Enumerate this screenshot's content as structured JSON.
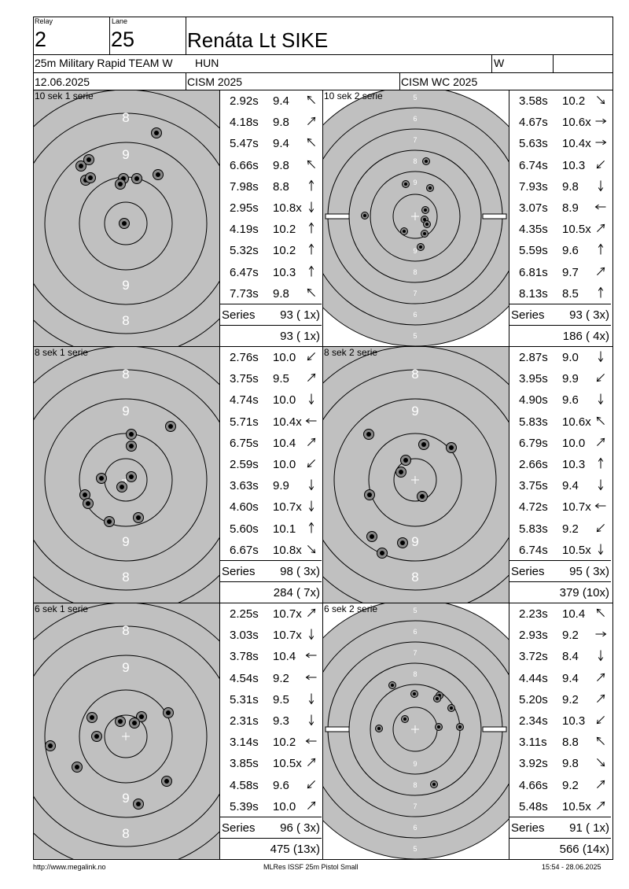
{
  "header": {
    "relay_label": "Relay",
    "relay": "2",
    "lane_label": "Lane",
    "lane": "25",
    "name": "Renáta Lt SIKE",
    "event": "25m Military Rapid TEAM W",
    "nation": "HUN",
    "gender": "W",
    "date": "12.06.2025",
    "competition": "CISM 2025",
    "match": "CISM WC 2025"
  },
  "series": [
    {
      "title": "10 sek 1 serie",
      "target": "precision",
      "shots": [
        {
          "time": "2.92s",
          "score": "9.4",
          "dir": "nw"
        },
        {
          "time": "4.18s",
          "score": "9.8",
          "dir": "ne"
        },
        {
          "time": "5.47s",
          "score": "9.4",
          "dir": "nw"
        },
        {
          "time": "6.66s",
          "score": "9.8",
          "dir": "nw"
        },
        {
          "time": "7.98s",
          "score": "8.8",
          "dir": "n"
        },
        {
          "time": "2.95s",
          "score": "10.8x",
          "dir": "s"
        },
        {
          "time": "4.19s",
          "score": "10.2",
          "dir": "n"
        },
        {
          "time": "5.32s",
          "score": "10.2",
          "dir": "n"
        },
        {
          "time": "6.47s",
          "score": "10.3",
          "dir": "n"
        },
        {
          "time": "7.73s",
          "score": "9.8",
          "dir": "nw"
        }
      ],
      "series_label": "Series",
      "series_total": "93 ( 1x)",
      "running_total": "93 ( 1x)"
    },
    {
      "title": "10 sek 2 serie",
      "target": "rapid",
      "shots": [
        {
          "time": "3.58s",
          "score": "10.2",
          "dir": "se"
        },
        {
          "time": "4.67s",
          "score": "10.6x",
          "dir": "e"
        },
        {
          "time": "5.63s",
          "score": "10.4x",
          "dir": "e"
        },
        {
          "time": "6.74s",
          "score": "10.3",
          "dir": "sw"
        },
        {
          "time": "7.93s",
          "score": "9.8",
          "dir": "s"
        },
        {
          "time": "3.07s",
          "score": "8.9",
          "dir": "w"
        },
        {
          "time": "4.35s",
          "score": "10.5x",
          "dir": "ne"
        },
        {
          "time": "5.59s",
          "score": "9.6",
          "dir": "n"
        },
        {
          "time": "6.81s",
          "score": "9.7",
          "dir": "ne"
        },
        {
          "time": "8.13s",
          "score": "8.5",
          "dir": "n"
        }
      ],
      "series_label": "Series",
      "series_total": "93 ( 3x)",
      "running_total": "186 ( 4x)"
    },
    {
      "title": "8 sek 1 serie",
      "target": "precision",
      "shots": [
        {
          "time": "2.76s",
          "score": "10.0",
          "dir": "sw"
        },
        {
          "time": "3.75s",
          "score": "9.5",
          "dir": "ne"
        },
        {
          "time": "4.74s",
          "score": "10.0",
          "dir": "s"
        },
        {
          "time": "5.71s",
          "score": "10.4x",
          "dir": "w"
        },
        {
          "time": "6.75s",
          "score": "10.4",
          "dir": "ne"
        },
        {
          "time": "2.59s",
          "score": "10.0",
          "dir": "sw"
        },
        {
          "time": "3.63s",
          "score": "9.9",
          "dir": "s"
        },
        {
          "time": "4.60s",
          "score": "10.7x",
          "dir": "s"
        },
        {
          "time": "5.60s",
          "score": "10.1",
          "dir": "n"
        },
        {
          "time": "6.67s",
          "score": "10.8x",
          "dir": "se"
        }
      ],
      "series_label": "Series",
      "series_total": "98 ( 3x)",
      "running_total": "284 ( 7x)"
    },
    {
      "title": "8 sek 2 serie",
      "target": "precision",
      "shots": [
        {
          "time": "2.87s",
          "score": "9.0",
          "dir": "s"
        },
        {
          "time": "3.95s",
          "score": "9.9",
          "dir": "sw"
        },
        {
          "time": "4.90s",
          "score": "9.6",
          "dir": "s"
        },
        {
          "time": "5.83s",
          "score": "10.6x",
          "dir": "nw"
        },
        {
          "time": "6.79s",
          "score": "10.0",
          "dir": "ne"
        },
        {
          "time": "2.66s",
          "score": "10.3",
          "dir": "n"
        },
        {
          "time": "3.75s",
          "score": "9.4",
          "dir": "s"
        },
        {
          "time": "4.72s",
          "score": "10.7x",
          "dir": "w"
        },
        {
          "time": "5.83s",
          "score": "9.2",
          "dir": "sw"
        },
        {
          "time": "6.74s",
          "score": "10.5x",
          "dir": "s"
        }
      ],
      "series_label": "Series",
      "series_total": "95 ( 3x)",
      "running_total": "379 (10x)"
    },
    {
      "title": "6 sek 1 serie",
      "target": "precision",
      "shots": [
        {
          "time": "2.25s",
          "score": "10.7x",
          "dir": "ne"
        },
        {
          "time": "3.03s",
          "score": "10.7x",
          "dir": "s"
        },
        {
          "time": "3.78s",
          "score": "10.4",
          "dir": "w"
        },
        {
          "time": "4.54s",
          "score": "9.2",
          "dir": "w"
        },
        {
          "time": "5.31s",
          "score": "9.5",
          "dir": "s"
        },
        {
          "time": "2.31s",
          "score": "9.3",
          "dir": "s"
        },
        {
          "time": "3.14s",
          "score": "10.2",
          "dir": "w"
        },
        {
          "time": "3.85s",
          "score": "10.5x",
          "dir": "ne"
        },
        {
          "time": "4.58s",
          "score": "9.6",
          "dir": "sw"
        },
        {
          "time": "5.39s",
          "score": "10.0",
          "dir": "ne"
        }
      ],
      "series_label": "Series",
      "series_total": "96 ( 3x)",
      "running_total": "475 (13x)"
    },
    {
      "title": "6 sek 2 serie",
      "target": "rapid",
      "shots": [
        {
          "time": "2.23s",
          "score": "10.4",
          "dir": "nw"
        },
        {
          "time": "2.93s",
          "score": "9.2",
          "dir": "e"
        },
        {
          "time": "3.72s",
          "score": "8.4",
          "dir": "s"
        },
        {
          "time": "4.44s",
          "score": "9.4",
          "dir": "ne"
        },
        {
          "time": "5.20s",
          "score": "9.2",
          "dir": "ne"
        },
        {
          "time": "2.34s",
          "score": "10.3",
          "dir": "sw"
        },
        {
          "time": "3.11s",
          "score": "8.8",
          "dir": "nw"
        },
        {
          "time": "3.92s",
          "score": "9.8",
          "dir": "se"
        },
        {
          "time": "4.66s",
          "score": "9.2",
          "dir": "ne"
        },
        {
          "time": "5.48s",
          "score": "10.5x",
          "dir": "ne"
        }
      ],
      "series_label": "Series",
      "series_total": "91 ( 1x)",
      "running_total": "566 (14x)"
    }
  ],
  "precision_ring_labels": {
    "outer": "8",
    "inner": "9"
  },
  "rapid_ring_labels": [
    "5",
    "6",
    "7",
    "8",
    "9"
  ],
  "footer": {
    "url": "http://www.megalink.no",
    "software": "MLRes ISSF 25m Pistol Small",
    "timestamp": "15:54 - 28.06.2025"
  }
}
